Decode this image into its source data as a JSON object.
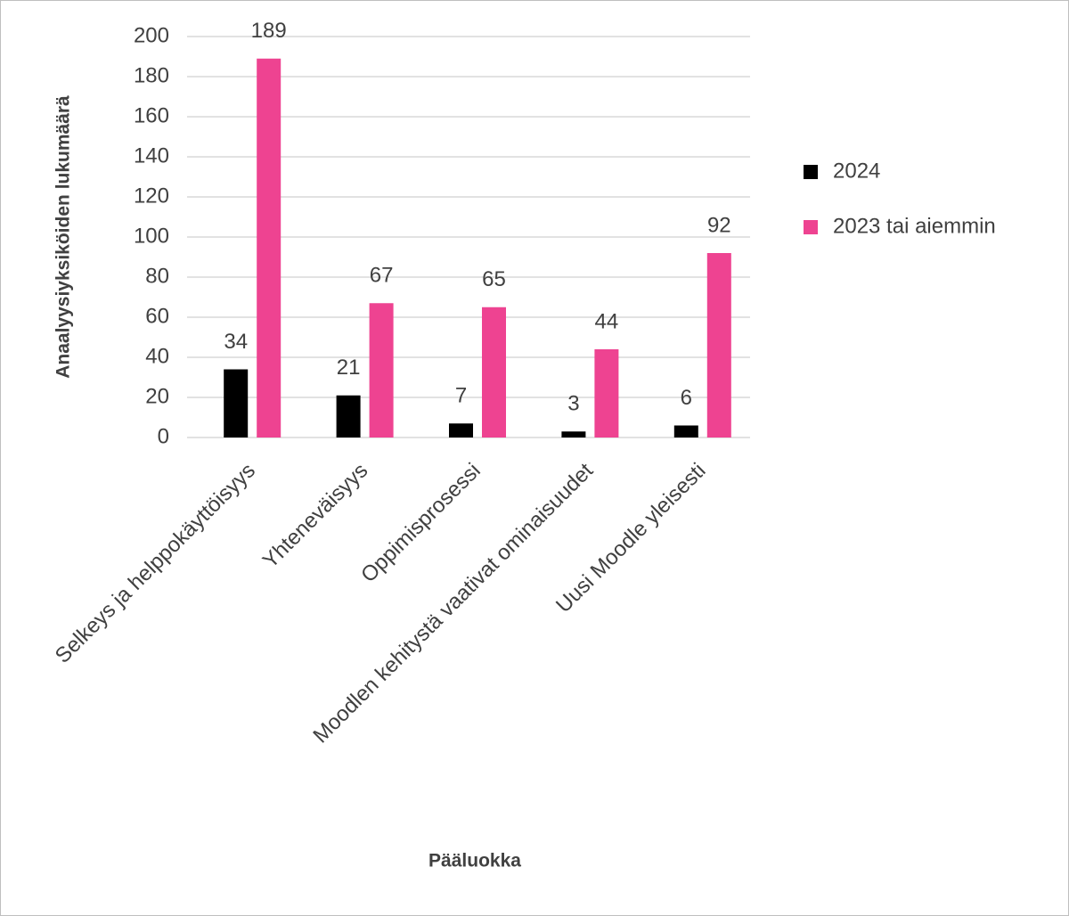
{
  "chart_data": {
    "type": "bar",
    "x_label": "Pääluokka",
    "y_label": "Anaalyysiyksiköiden lukumäärä",
    "categories": [
      "Selkeys ja helppokäyttöisyys",
      "Yhteneväisyys",
      "Oppimisprosessi",
      "Moodlen kehitystä vaativat ominaisuudet",
      "Uusi Moodle yleisesti"
    ],
    "series": [
      {
        "name": "2024",
        "color": "#000000",
        "values": [
          34,
          21,
          7,
          3,
          6
        ]
      },
      {
        "name": "2023 tai aiemmin",
        "color": "#ee4391",
        "values": [
          189,
          67,
          65,
          44,
          92
        ]
      }
    ],
    "ylim": [
      0,
      200
    ],
    "yticks": [
      0,
      20,
      40,
      60,
      80,
      100,
      120,
      140,
      160,
      180,
      200
    ],
    "grid": true,
    "legend": "right"
  }
}
